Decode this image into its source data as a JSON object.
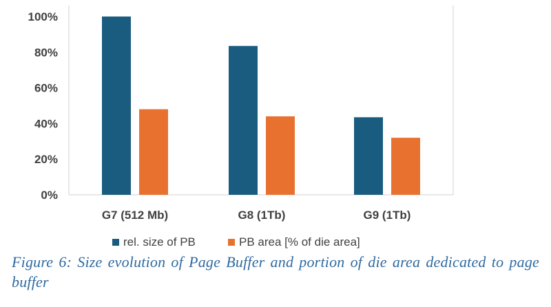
{
  "chart_data": {
    "type": "bar",
    "title": "",
    "xlabel": "",
    "ylabel": "",
    "categories": [
      "G7 (512 Mb)",
      "G8 (1Tb)",
      "G9 (1Tb)"
    ],
    "series": [
      {
        "name": "rel. size of PB",
        "values": [
          100,
          83.5,
          43.5
        ],
        "color": "#1a5c80"
      },
      {
        "name": "PB area [% of die area]",
        "values": [
          48,
          44,
          32
        ],
        "color": "#e87130"
      }
    ],
    "ylim": [
      0,
      100
    ],
    "yticks": [
      0,
      20,
      40,
      60,
      80,
      100
    ],
    "ytick_labels": [
      "0%",
      "20%",
      "40%",
      "60%",
      "80%",
      "100%"
    ],
    "grid": false,
    "legend_position": "bottom"
  },
  "caption": "Figure 6: Size evolution of Page Buffer and portion of die area dedicated to page buffer"
}
